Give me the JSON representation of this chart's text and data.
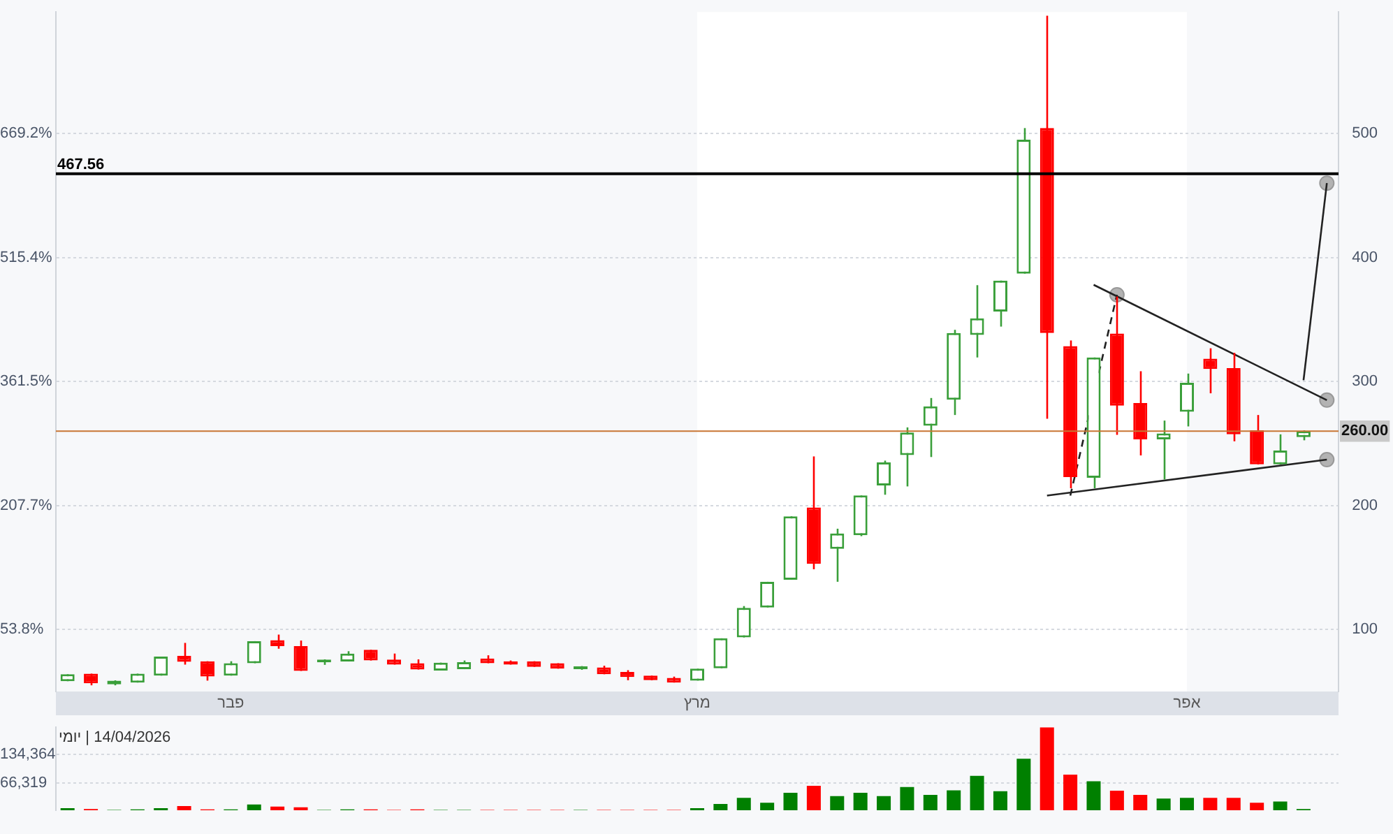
{
  "chart_data": [
    {
      "type": "candlestick",
      "categories": [
        null,
        null,
        null,
        null,
        null,
        null,
        null,
        "פבר",
        null,
        null,
        null,
        null,
        null,
        null,
        null,
        null,
        null,
        null,
        null,
        null,
        null,
        null,
        null,
        null,
        null,
        null,
        null,
        "מרץ",
        null,
        null,
        null,
        null,
        null,
        null,
        null,
        null,
        null,
        null,
        null,
        null,
        null,
        null,
        null,
        null,
        null,
        null,
        null,
        null,
        "אפר",
        null,
        null,
        null,
        null,
        null,
        null
      ],
      "ylim": [
        -23.1,
        820.0
      ],
      "yticks": [
        {
          "value": 53.8,
          "label": "53.8%"
        },
        {
          "value": 207.7,
          "label": "207.7%"
        },
        {
          "value": 361.5,
          "label": "361.5%"
        },
        {
          "value": 515.4,
          "label": "515.4%"
        },
        {
          "value": 669.2,
          "label": "669.2%"
        }
      ],
      "y2lim": [
        50,
        598
      ],
      "y2ticks": [
        100,
        200,
        {
          "value": 260,
          "label": "260.00"
        },
        300,
        400,
        500
      ],
      "grid": "y",
      "bands": [
        {
          "axis": "x",
          "from": "מרץ",
          "to": "אפר",
          "color": "#ffffff"
        }
      ],
      "ref_lines": [
        {
          "axis": "y2",
          "value": 467.56,
          "label": "467.56",
          "color": "#000000"
        },
        {
          "axis": "y2",
          "value": 260,
          "color": "#c87533"
        }
      ],
      "series": [
        {
          "type": "candlestick",
          "axis": "y2",
          "ohlc": [
            [
              58.3,
              63.9,
              58.3,
              63.9
            ],
            [
              64.4,
              64.4,
              55.0,
              56.6
            ],
            [
              55.8,
              59.0,
              55.0,
              58.8
            ],
            [
              57.2,
              64.4,
              57.2,
              64.4
            ],
            [
              62.8,
              78.1,
              62.8,
              78.1
            ],
            [
              78.8,
              89.2,
              71.7,
              73.9
            ],
            [
              74.4,
              74.4,
              58.8,
              62.1
            ],
            [
              62.8,
              74.4,
              62.8,
              72.8
            ],
            [
              72.8,
              90.6,
              72.8,
              90.6
            ],
            [
              91.4,
              95.9,
              84.5,
              86.6
            ],
            [
              86.6,
              91.1,
              66.6,
              66.6
            ],
            [
              73.5,
              75.9,
              71.5,
              74.5
            ],
            [
              74.2,
              82.5,
              74.2,
              80.6
            ],
            [
              83.6,
              83.6,
              75.0,
              75.0
            ],
            [
              75.8,
              80.6,
              71.7,
              71.7
            ],
            [
              72.8,
              75.9,
              67.7,
              67.7
            ],
            [
              66.9,
              73.3,
              66.9,
              73.3
            ],
            [
              68.0,
              75.0,
              68.0,
              73.7
            ],
            [
              76.6,
              79.2,
              72.8,
              72.8
            ],
            [
              74.4,
              75.0,
              71.7,
              71.7
            ],
            [
              74.4,
              74.4,
              69.9,
              69.9
            ],
            [
              72.8,
              72.8,
              68.4,
              68.4
            ],
            [
              68.0,
              70.5,
              67.5,
              69.5
            ],
            [
              69.5,
              70.8,
              63.9,
              63.9
            ],
            [
              65.8,
              67.2,
              59.1,
              61.7
            ],
            [
              62.8,
              62.8,
              59.1,
              59.1
            ],
            [
              61.0,
              62.0,
              57.2,
              57.2
            ],
            [
              58.8,
              68.4,
              58.8,
              68.4
            ],
            [
              68.8,
              92.9,
              68.8,
              92.9
            ],
            [
              93.6,
              118.9,
              93.6,
              117.4
            ],
            [
              117.8,
              138.5,
              117.8,
              138.5
            ],
            [
              140.1,
              191.3,
              140.1,
              191.3
            ],
            [
              198.4,
              239.6,
              148.6,
              153.0
            ],
            [
              165.0,
              181.3,
              138.5,
              177.5
            ],
            [
              176.1,
              208.1,
              175.3,
              208.1
            ],
            [
              216.2,
              236.2,
              208.7,
              234.8
            ],
            [
              240.7,
              263.0,
              215.4,
              258.9
            ],
            [
              264.4,
              286.7,
              239.1,
              280.0
            ],
            [
              285.3,
              341.7,
              273.0,
              339.1
            ],
            [
              337.6,
              377.7,
              319.4,
              351.0
            ],
            [
              356.5,
              381.4,
              344.3,
              381.4
            ],
            [
              387.0,
              504.4,
              387.0,
              495.0
            ],
            [
              504.4,
              595.0,
              270.0,
              339.1
            ],
            [
              328.5,
              333.1,
              213.9,
              222.9
            ],
            [
              222.4,
              319.4,
              213.9,
              319.4
            ],
            [
              338.7,
              368.5,
              257.0,
              280.5
            ],
            [
              282.7,
              308.3,
              240.4,
              253.3
            ],
            [
              253.3,
              268.5,
              221.0,
              258.2
            ],
            [
              275.6,
              306.4,
              263.8,
              299.0
            ],
            [
              318.4,
              326.8,
              290.5,
              310.1
            ],
            [
              310.8,
              323.1,
              251.8,
              257.4
            ],
            [
              260.7,
              273.0,
              233.2,
              233.2
            ],
            [
              233.2,
              257.4,
              233.2,
              244.4
            ],
            [
              255.2,
              260.7,
              252.6,
              260.0
            ],
            null
          ],
          "colors": [
            "#3a9f3a",
            "#ff0000",
            "#3a9f3a",
            "#3a9f3a",
            "#3a9f3a",
            "#ff0000",
            "#ff0000",
            "#3a9f3a",
            "#3a9f3a",
            "#ff0000",
            "#ff0000",
            "#3a9f3a",
            "#3a9f3a",
            "#ff0000",
            "#ff0000",
            "#ff0000",
            "#3a9f3a",
            "#3a9f3a",
            "#ff0000",
            "#ff0000",
            "#ff0000",
            "#ff0000",
            "#3a9f3a",
            "#ff0000",
            "#ff0000",
            "#ff0000",
            "#ff0000",
            "#3a9f3a",
            "#3a9f3a",
            "#3a9f3a",
            "#3a9f3a",
            "#3a9f3a",
            "#ff0000",
            "#3a9f3a",
            "#3a9f3a",
            "#3a9f3a",
            "#3a9f3a",
            "#3a9f3a",
            "#3a9f3a",
            "#3a9f3a",
            "#3a9f3a",
            "#3a9f3a",
            "#ff0000",
            "#ff0000",
            "#3a9f3a",
            "#ff0000",
            "#ff0000",
            "#3a9f3a",
            "#3a9f3a",
            "#ff0000",
            "#ff0000",
            "#ff0000",
            "#3a9f3a",
            "#3a9f3a",
            null
          ]
        },
        {
          "type": "line",
          "axis": "y2",
          "color": "#222222",
          "line_style": "solid",
          "marker": "none",
          "values": [
            null,
            null,
            null,
            null,
            null,
            null,
            null,
            null,
            null,
            null,
            null,
            null,
            null,
            null,
            null,
            null,
            null,
            null,
            null,
            null,
            null,
            null,
            null,
            null,
            null,
            null,
            null,
            null,
            null,
            null,
            null,
            null,
            null,
            null,
            null,
            null,
            null,
            null,
            null,
            null,
            null,
            null,
            null,
            null,
            378,
            null,
            null,
            null,
            null,
            null,
            null,
            null,
            null,
            null,
            285
          ]
        },
        {
          "type": "line",
          "axis": "y2",
          "color": "#222222",
          "line_style": "solid",
          "marker": "none",
          "values": [
            null,
            null,
            null,
            null,
            null,
            null,
            null,
            null,
            null,
            null,
            null,
            null,
            null,
            null,
            null,
            null,
            null,
            null,
            null,
            null,
            null,
            null,
            null,
            null,
            null,
            null,
            null,
            null,
            null,
            null,
            null,
            null,
            null,
            null,
            null,
            null,
            null,
            null,
            null,
            null,
            null,
            null,
            208,
            null,
            null,
            null,
            null,
            null,
            null,
            null,
            null,
            null,
            null,
            null,
            237
          ]
        },
        {
          "type": "line",
          "axis": "y2",
          "color": "#222222",
          "line_style": "solid",
          "marker": "none",
          "values": [
            null,
            null,
            null,
            null,
            null,
            null,
            null,
            null,
            null,
            null,
            null,
            null,
            null,
            null,
            null,
            null,
            null,
            null,
            null,
            null,
            null,
            null,
            null,
            null,
            null,
            null,
            null,
            null,
            null,
            null,
            null,
            null,
            null,
            null,
            null,
            null,
            null,
            null,
            null,
            null,
            null,
            null,
            null,
            null,
            null,
            null,
            null,
            null,
            null,
            null,
            null,
            null,
            null,
            301,
            460
          ]
        },
        {
          "type": "line",
          "axis": "y2",
          "color": "#222222",
          "line_style": "dashed",
          "marker": "none",
          "values": [
            null,
            null,
            null,
            null,
            null,
            null,
            null,
            null,
            null,
            null,
            null,
            null,
            null,
            null,
            null,
            null,
            null,
            null,
            null,
            null,
            null,
            null,
            null,
            null,
            null,
            null,
            null,
            null,
            null,
            null,
            null,
            null,
            null,
            null,
            null,
            null,
            null,
            null,
            null,
            null,
            null,
            null,
            null,
            208,
            null,
            370,
            null,
            null,
            null,
            null,
            null,
            null,
            null,
            null,
            null
          ]
        },
        {
          "type": "scatter",
          "axis": "y2",
          "color": "#b3b3b3",
          "marker": "circle",
          "values": [
            null,
            null,
            null,
            null,
            null,
            null,
            null,
            null,
            null,
            null,
            null,
            null,
            null,
            null,
            null,
            null,
            null,
            null,
            null,
            null,
            null,
            null,
            null,
            null,
            null,
            null,
            null,
            null,
            null,
            null,
            null,
            null,
            null,
            null,
            null,
            null,
            null,
            null,
            null,
            null,
            null,
            null,
            null,
            null,
            null,
            370,
            null,
            null,
            null,
            null,
            null,
            null,
            null,
            null,
            460
          ]
        },
        {
          "type": "scatter",
          "axis": "y2",
          "color": "#b3b3b3",
          "marker": "circle",
          "values": [
            null,
            null,
            null,
            null,
            null,
            null,
            null,
            null,
            null,
            null,
            null,
            null,
            null,
            null,
            null,
            null,
            null,
            null,
            null,
            null,
            null,
            null,
            null,
            null,
            null,
            null,
            null,
            null,
            null,
            null,
            null,
            null,
            null,
            null,
            null,
            null,
            null,
            null,
            null,
            null,
            null,
            null,
            null,
            null,
            null,
            null,
            null,
            null,
            null,
            null,
            null,
            null,
            null,
            null,
            285
          ]
        },
        {
          "type": "scatter",
          "axis": "y2",
          "color": "#b3b3b3",
          "marker": "circle",
          "values": [
            null,
            null,
            null,
            null,
            null,
            null,
            null,
            null,
            null,
            null,
            null,
            null,
            null,
            null,
            null,
            null,
            null,
            null,
            null,
            null,
            null,
            null,
            null,
            null,
            null,
            null,
            null,
            null,
            null,
            null,
            null,
            null,
            null,
            null,
            null,
            null,
            null,
            null,
            null,
            null,
            null,
            null,
            null,
            null,
            null,
            null,
            null,
            null,
            null,
            null,
            null,
            null,
            null,
            null,
            237
          ]
        }
      ]
    },
    {
      "type": "bar",
      "title": "14/04/2026 | יומי",
      "tick_labels": "y",
      "grid": "y",
      "categories": [
        null,
        null,
        null,
        null,
        null,
        null,
        null,
        null,
        null,
        null,
        null,
        null,
        null,
        null,
        null,
        null,
        null,
        null,
        null,
        null,
        null,
        null,
        null,
        null,
        null,
        null,
        null,
        null,
        null,
        null,
        null,
        null,
        null,
        null,
        null,
        null,
        null,
        null,
        null,
        null,
        null,
        null,
        null,
        null,
        null,
        null,
        null,
        null,
        null,
        null,
        null,
        null,
        null,
        null,
        null
      ],
      "ylim": [
        0,
        200000
      ],
      "yticks": [
        {
          "value": 66319,
          "label": "66,319"
        },
        {
          "value": 134364,
          "label": "134,364"
        }
      ],
      "values": [
        5000,
        3000,
        1000,
        2000,
        5000,
        10000,
        2000,
        2000,
        14000,
        9000,
        7000,
        1000,
        2000,
        2000,
        1000,
        2000,
        1000,
        1000,
        1000,
        1000,
        1000,
        1000,
        1000,
        1000,
        1000,
        1000,
        1000,
        5000,
        15000,
        30000,
        18000,
        42000,
        59000,
        34000,
        42000,
        34000,
        56000,
        37000,
        48000,
        83000,
        46000,
        124000,
        200000,
        86000,
        70000,
        47000,
        37000,
        28000,
        30000,
        30000,
        30000,
        18000,
        21000,
        3000,
        null
      ],
      "colors": [
        "#008000",
        "#ff0000",
        "#008000",
        "#008000",
        "#008000",
        "#ff0000",
        "#ff0000",
        "#008000",
        "#008000",
        "#ff0000",
        "#ff0000",
        "#008000",
        "#008000",
        "#ff0000",
        "#ff0000",
        "#ff0000",
        "#008000",
        "#008000",
        "#ff0000",
        "#ff0000",
        "#ff0000",
        "#ff0000",
        "#008000",
        "#ff0000",
        "#ff0000",
        "#ff0000",
        "#ff0000",
        "#008000",
        "#008000",
        "#008000",
        "#008000",
        "#008000",
        "#ff0000",
        "#008000",
        "#008000",
        "#008000",
        "#008000",
        "#008000",
        "#008000",
        "#008000",
        "#008000",
        "#008000",
        "#ff0000",
        "#ff0000",
        "#008000",
        "#ff0000",
        "#ff0000",
        "#008000",
        "#008000",
        "#ff0000",
        "#ff0000",
        "#ff0000",
        "#008000",
        "#008000",
        null
      ]
    }
  ]
}
